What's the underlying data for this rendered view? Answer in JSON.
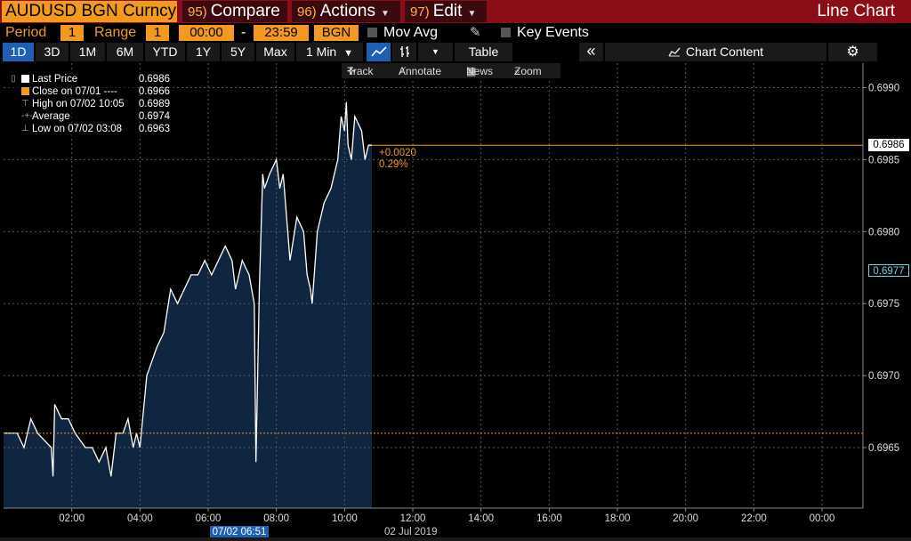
{
  "titlebar": {
    "ticker": "AUDUSD BGN Curncy",
    "menus": [
      {
        "num": "95)",
        "label": "Compare"
      },
      {
        "num": "96)",
        "label": "Actions"
      },
      {
        "num": "97)",
        "label": "Edit"
      }
    ],
    "window_title": "Line Chart"
  },
  "settings": {
    "period_label": "Period",
    "period_value": "1",
    "range_label": "Range",
    "range_value": "1",
    "time_start": "00:00",
    "time_sep": "-",
    "time_end": "23:59",
    "source": "BGN",
    "mov_avg_label": "Mov Avg",
    "key_events_label": "Key Events"
  },
  "toolbar": {
    "ranges": [
      "1D",
      "3D",
      "1M",
      "6M",
      "YTD",
      "1Y",
      "5Y",
      "Max"
    ],
    "selected_range": "1D",
    "interval": "1 Min",
    "table_label": "Table",
    "collapse_glyph": "«",
    "chart_content_label": "Chart Content"
  },
  "subtoolbar": {
    "track": "Track",
    "annotate": "Annotate",
    "news": "News",
    "zoom": "Zoom"
  },
  "legend": {
    "items": [
      {
        "name": "Last Price",
        "value": "0.6986",
        "color": "#ffffff"
      },
      {
        "name": "Close on 07/01 ----",
        "value": "0.6966",
        "color": "#f39a1e"
      },
      {
        "name": "High on 07/02 10:05",
        "value": "0.6989",
        "color": ""
      },
      {
        "name": "Average",
        "value": "0.6974",
        "color": ""
      },
      {
        "name": "Low on 07/02 03:08",
        "value": "0.6963",
        "color": ""
      }
    ]
  },
  "tags": {
    "last_price": "0.6986",
    "crosshair_price": "0.6977",
    "change_abs": "+0.0020",
    "change_pct": "0.29%",
    "crosshair_time": "07/02 06:51",
    "date_label": "02 Jul 2019"
  },
  "colors": {
    "accent_orange": "#f39a1e",
    "title_bar": "#8b0d18",
    "area_fill": "#0f2540",
    "selected_blue": "#1e5fb4",
    "crosshair_teal": "#6fd4e0"
  },
  "chart_data": {
    "type": "area",
    "title": "",
    "xlabel": "",
    "ylabel": "",
    "x_ticks": [
      "02:00",
      "04:00",
      "06:00",
      "08:00",
      "10:00",
      "12:00",
      "14:00",
      "16:00",
      "18:00",
      "20:00",
      "22:00",
      "00:00"
    ],
    "x_tick_hours": [
      2,
      4,
      6,
      8,
      10,
      12,
      14,
      16,
      18,
      20,
      22,
      24
    ],
    "xlim_hours": [
      0,
      25.2
    ],
    "y_ticks": [
      "0.6965",
      "0.6970",
      "0.6975",
      "0.6980",
      "0.6985",
      "0.6990"
    ],
    "y_tick_values": [
      0.6965,
      0.697,
      0.6975,
      0.698,
      0.6985,
      0.699
    ],
    "ylim": [
      0.69608,
      0.69917
    ],
    "grid": true,
    "reference_lines": [
      {
        "value": 0.6986,
        "style": "solid",
        "color": "#f39a1e"
      },
      {
        "value": 0.6966,
        "style": "dotted",
        "color": "#f39a1e"
      }
    ],
    "series": [
      {
        "name": "Last Price",
        "x_hours": [
          0,
          0.2,
          0.4,
          0.6,
          0.8,
          1.0,
          1.4,
          1.45,
          1.5,
          1.7,
          1.9,
          2.1,
          2.4,
          2.6,
          2.8,
          3.0,
          3.15,
          3.3,
          3.5,
          3.65,
          3.8,
          3.9,
          4.0,
          4.2,
          4.5,
          4.7,
          4.9,
          5.1,
          5.3,
          5.5,
          5.7,
          5.9,
          6.1,
          6.3,
          6.5,
          6.7,
          6.8,
          7.0,
          7.2,
          7.35,
          7.4,
          7.5,
          7.55,
          7.6,
          7.65,
          7.8,
          8.0,
          8.1,
          8.2,
          8.4,
          8.6,
          8.8,
          8.9,
          9.0,
          9.05,
          9.2,
          9.4,
          9.6,
          9.8,
          9.9,
          10.0,
          10.05,
          10.1,
          10.2,
          10.3,
          10.5,
          10.6,
          10.7,
          10.8
        ],
        "values": [
          0.6966,
          0.6966,
          0.6966,
          0.6965,
          0.6967,
          0.6966,
          0.6965,
          0.6963,
          0.6968,
          0.6967,
          0.6967,
          0.6966,
          0.6965,
          0.6965,
          0.6964,
          0.6965,
          0.6963,
          0.6966,
          0.6966,
          0.6967,
          0.6965,
          0.6966,
          0.6965,
          0.697,
          0.6972,
          0.6973,
          0.6976,
          0.6975,
          0.6976,
          0.6977,
          0.6977,
          0.6978,
          0.6977,
          0.6978,
          0.6979,
          0.6978,
          0.6976,
          0.6978,
          0.6977,
          0.6975,
          0.6964,
          0.6976,
          0.698,
          0.6984,
          0.6983,
          0.6984,
          0.6985,
          0.6983,
          0.6984,
          0.6978,
          0.6981,
          0.698,
          0.6977,
          0.6976,
          0.6975,
          0.698,
          0.6982,
          0.6983,
          0.6985,
          0.6988,
          0.6987,
          0.6989,
          0.6986,
          0.6985,
          0.6988,
          0.6987,
          0.6985,
          0.6986,
          0.6986
        ]
      }
    ]
  }
}
